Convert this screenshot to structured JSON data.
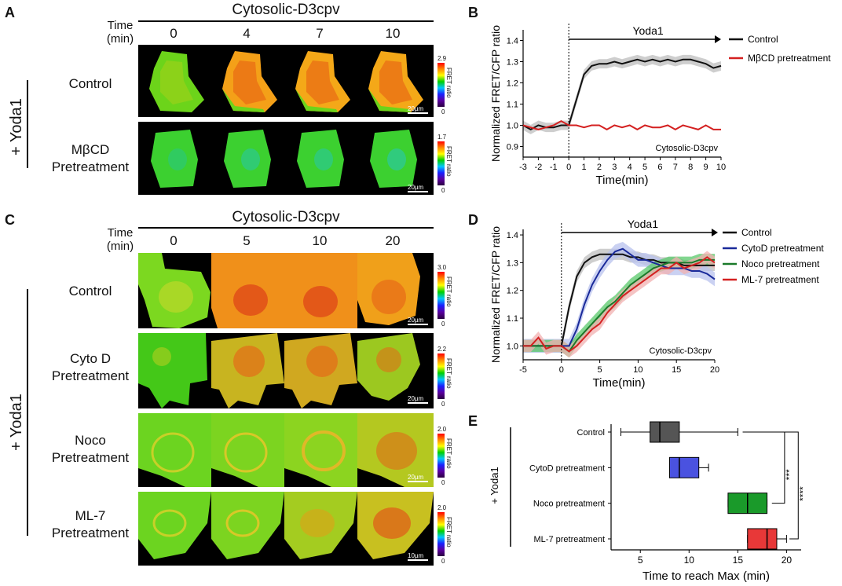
{
  "panel_letters": {
    "A": "A",
    "B": "B",
    "C": "C",
    "D": "D",
    "E": "E"
  },
  "panelA": {
    "header": "Cytosolic-D3cpv",
    "time_label_line1": "Time",
    "time_label_line2": "(min)",
    "timepoints": [
      "0",
      "4",
      "7",
      "10"
    ],
    "treatment": "+ Yoda1",
    "rows": [
      {
        "label_line1": "Control",
        "label_line2": "",
        "cbar_max": "2.9",
        "cbar_min": "0",
        "cbar_label": "FRET ratio",
        "scalebar": "20µm"
      },
      {
        "label_line1": "MβCD",
        "label_line2": "Pretreatment",
        "cbar_max": "1.7",
        "cbar_min": "0",
        "cbar_label": "FRET ratio",
        "scalebar": "20µm"
      }
    ]
  },
  "panelC": {
    "header": "Cytosolic-D3cpv",
    "time_label_line1": "Time",
    "time_label_line2": "(min)",
    "timepoints": [
      "0",
      "5",
      "10",
      "20"
    ],
    "treatment": "+ Yoda1",
    "rows": [
      {
        "label_line1": "Control",
        "label_line2": "",
        "cbar_max": "3.0",
        "cbar_min": "0",
        "cbar_label": "FRET ratio",
        "scalebar": "20µm"
      },
      {
        "label_line1": "Cyto D",
        "label_line2": "Pretreatment",
        "cbar_max": "2.2",
        "cbar_min": "0",
        "cbar_label": "FRET ratio",
        "scalebar": "20µm"
      },
      {
        "label_line1": "Noco",
        "label_line2": "Pretreatment",
        "cbar_max": "2.0",
        "cbar_min": "0",
        "cbar_label": "FRET ratio",
        "scalebar": "20µm"
      },
      {
        "label_line1": "ML-7",
        "label_line2": "Pretreatment",
        "cbar_max": "2.0",
        "cbar_min": "0",
        "cbar_label": "FRET ratio",
        "scalebar": "10µm"
      }
    ]
  },
  "chart_data": [
    {
      "id": "B",
      "type": "line",
      "title": "",
      "annotation": "Yoda1",
      "inset_label": "Cytosolic-D3cpv",
      "xlabel": "Time(min)",
      "ylabel": "Normalized FRET/CFP ratio",
      "xlim": [
        -3,
        10
      ],
      "ylim": [
        0.85,
        1.45
      ],
      "xticks": [
        -3,
        -2,
        -1,
        0,
        1,
        2,
        3,
        4,
        5,
        6,
        7,
        8,
        9,
        10
      ],
      "yticks": [
        0.9,
        1.0,
        1.1,
        1.2,
        1.3,
        1.4
      ],
      "yticklabels": [
        "0.9",
        "1.0",
        "1.1",
        "1.2",
        "1.3",
        "1.4"
      ],
      "x": [
        -3,
        -2.5,
        -2,
        -1.5,
        -1,
        -0.5,
        0,
        0.5,
        1,
        1.5,
        2,
        2.5,
        3,
        3.5,
        4,
        4.5,
        5,
        5.5,
        6,
        6.5,
        7,
        7.5,
        8,
        8.5,
        9,
        9.5,
        10
      ],
      "series": [
        {
          "name": "Control",
          "color": "#111111",
          "band_color": "#bdbdbd",
          "band": 0.022,
          "values": [
            1.0,
            0.98,
            1.0,
            0.99,
            0.99,
            1.0,
            1.0,
            1.12,
            1.24,
            1.28,
            1.29,
            1.29,
            1.3,
            1.29,
            1.3,
            1.31,
            1.3,
            1.31,
            1.3,
            1.31,
            1.3,
            1.31,
            1.31,
            1.3,
            1.29,
            1.27,
            1.28
          ]
        },
        {
          "name": "MβCD pretreatment",
          "color": "#d42020",
          "values": [
            1.0,
            0.99,
            0.98,
            0.99,
            1.0,
            1.02,
            1.0,
            1.0,
            0.99,
            1.0,
            1.0,
            0.98,
            1.0,
            0.99,
            1.0,
            0.98,
            1.0,
            0.99,
            0.99,
            1.0,
            0.98,
            1.0,
            0.99,
            0.98,
            1.0,
            0.98,
            0.98
          ]
        }
      ]
    },
    {
      "id": "D",
      "type": "line",
      "title": "",
      "annotation": "Yoda1",
      "inset_label": "Cytosolic-D3cpv",
      "xlabel": "Time(min)",
      "ylabel": "Normalized FRET/CFP ratio",
      "xlim": [
        -5,
        20
      ],
      "ylim": [
        0.95,
        1.42
      ],
      "xticks": [
        -5,
        0,
        5,
        10,
        15,
        20
      ],
      "yticks": [
        1.0,
        1.1,
        1.2,
        1.3,
        1.4
      ],
      "yticklabels": [
        "1.0",
        "1.1",
        "1.2",
        "1.3",
        "1.4"
      ],
      "x": [
        -5,
        -4,
        -3,
        -2,
        -1,
        0,
        1,
        2,
        3,
        4,
        5,
        6,
        7,
        8,
        9,
        10,
        11,
        12,
        13,
        14,
        15,
        16,
        17,
        18,
        19,
        20
      ],
      "series": [
        {
          "name": "Control",
          "color": "#111111",
          "band_color": "#bdbdbd",
          "band": 0.02,
          "values": [
            1.0,
            1.0,
            1.0,
            1.0,
            1.0,
            1.0,
            1.14,
            1.25,
            1.3,
            1.32,
            1.33,
            1.33,
            1.33,
            1.33,
            1.32,
            1.32,
            1.31,
            1.31,
            1.3,
            1.3,
            1.3,
            1.29,
            1.29,
            1.29,
            1.29,
            1.29
          ]
        },
        {
          "name": "CytoD pretreatment",
          "color": "#1a2a9a",
          "band_color": "#b8c2ee",
          "band": 0.025,
          "values": [
            1.0,
            1.0,
            1.0,
            1.0,
            1.0,
            1.0,
            1.0,
            1.06,
            1.15,
            1.22,
            1.27,
            1.31,
            1.34,
            1.35,
            1.33,
            1.31,
            1.31,
            1.3,
            1.29,
            1.28,
            1.28,
            1.28,
            1.27,
            1.27,
            1.26,
            1.24
          ]
        },
        {
          "name": "Noco pretreatment",
          "color": "#1a7a2a",
          "band_color": "#58c86a",
          "band": 0.022,
          "values": [
            1.0,
            1.0,
            1.0,
            1.0,
            1.0,
            1.0,
            0.98,
            1.02,
            1.05,
            1.08,
            1.11,
            1.14,
            1.16,
            1.19,
            1.22,
            1.24,
            1.26,
            1.28,
            1.29,
            1.3,
            1.3,
            1.3,
            1.3,
            1.31,
            1.31,
            1.31
          ]
        },
        {
          "name": "ML-7 pretreatment",
          "color": "#d42020",
          "band_color": "#f2b0b0",
          "band": 0.022,
          "values": [
            1.0,
            1.0,
            1.03,
            0.99,
            1.0,
            1.0,
            0.98,
            1.0,
            1.03,
            1.06,
            1.08,
            1.12,
            1.15,
            1.18,
            1.2,
            1.22,
            1.24,
            1.26,
            1.28,
            1.28,
            1.3,
            1.28,
            1.29,
            1.3,
            1.32,
            1.3
          ]
        }
      ]
    },
    {
      "id": "E",
      "type": "box",
      "orientation": "horizontal",
      "treatment": "+ Yoda1",
      "xlabel": "Time to reach Max",
      "xlabel_unit": "(min)",
      "xlim": [
        2,
        21.5
      ],
      "xticks": [
        5,
        10,
        15,
        20
      ],
      "categories": [
        "Control",
        "CytoD pretreatment",
        "Noco pretreatment",
        "ML-7 pretreatment"
      ],
      "boxes": [
        {
          "min": 3,
          "q1": 6,
          "median": 7,
          "q3": 9,
          "max": 15,
          "color": "#555555"
        },
        {
          "min": 8,
          "q1": 8,
          "median": 9,
          "q3": 11,
          "max": 12,
          "color": "#4a52e0"
        },
        {
          "min": 14,
          "q1": 14,
          "median": 16,
          "q3": 18,
          "max": 18,
          "color": "#1a9a2a"
        },
        {
          "min": 16,
          "q1": 16,
          "median": 18,
          "q3": 19,
          "max": 20,
          "color": "#e83838"
        }
      ],
      "significance": [
        {
          "pair": [
            "Control",
            "Noco pretreatment"
          ],
          "label": "***"
        },
        {
          "pair": [
            "Control",
            "ML-7 pretreatment"
          ],
          "label": "****"
        }
      ]
    }
  ]
}
